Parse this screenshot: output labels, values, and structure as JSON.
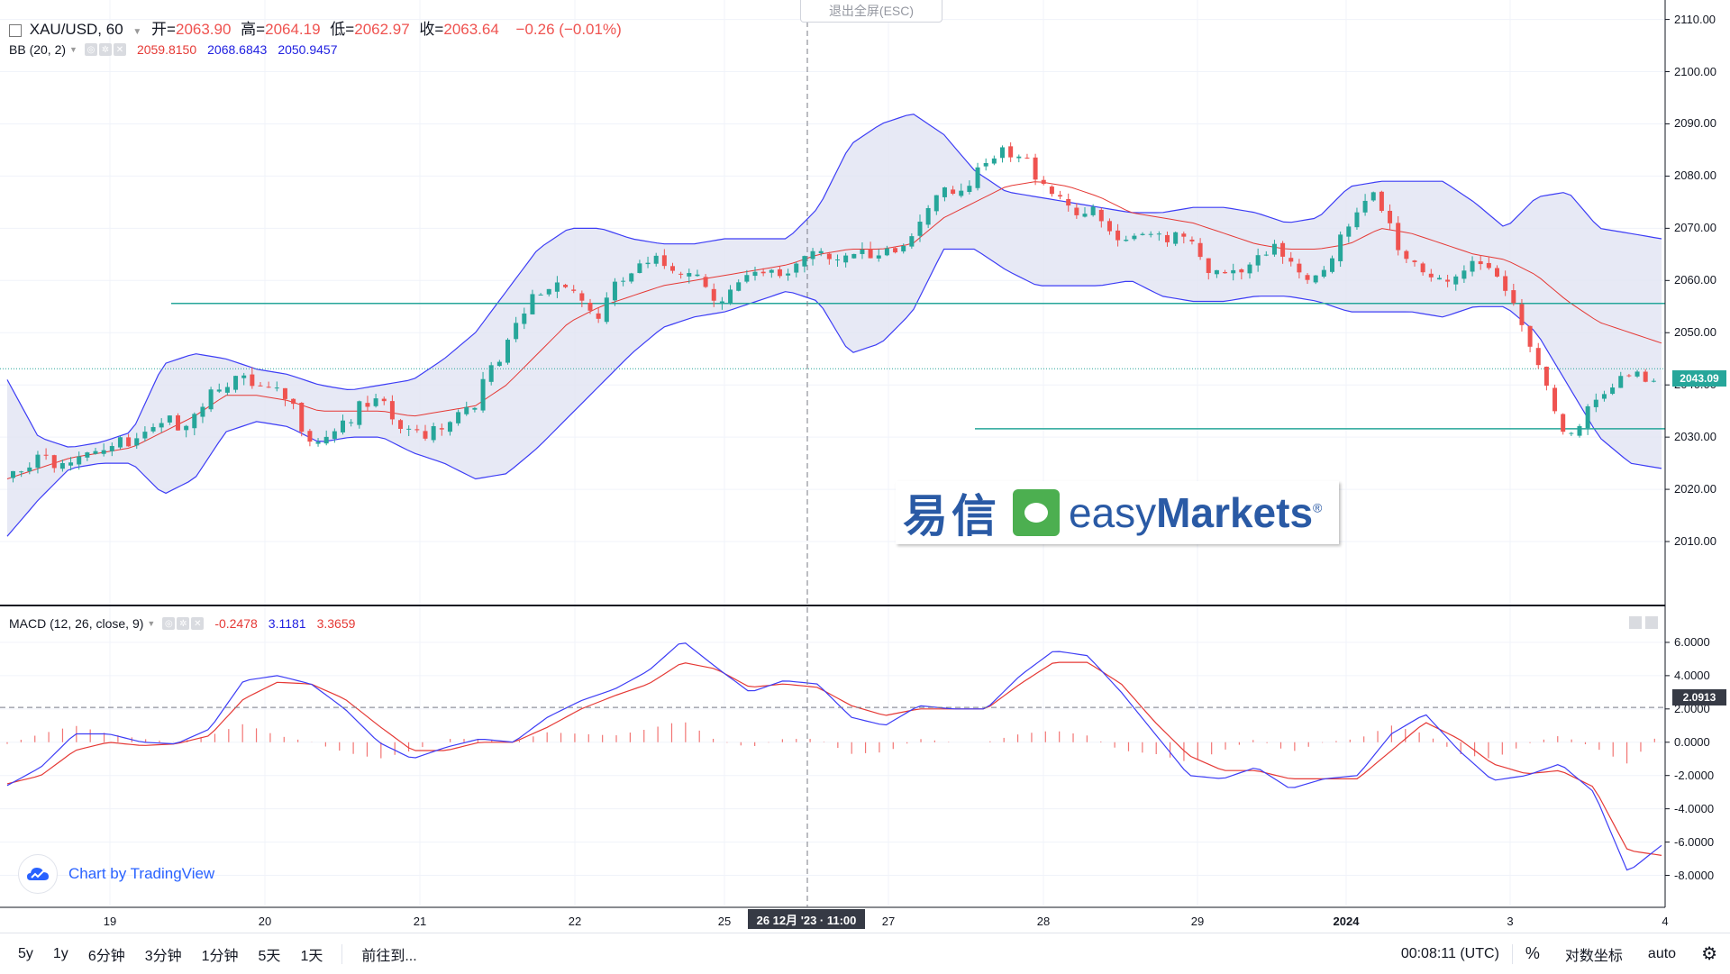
{
  "header": {
    "symbol": "XAU/USD, 60",
    "open_label": "开=",
    "open_value": "2063.90",
    "high_label": "高=",
    "high_value": "2064.19",
    "low_label": "低=",
    "low_value": "2062.97",
    "close_label": "收=",
    "close_value": "2063.64",
    "change": "−0.26 (−0.01%)"
  },
  "bb": {
    "label": "BB (20, 2)",
    "basis": "2059.8150",
    "upper": "2068.6843",
    "lower": "2050.9457"
  },
  "macd": {
    "label": "MACD (12, 26, close, 9)",
    "hist": "-0.2478",
    "macd": "3.1181",
    "signal": "3.3659"
  },
  "exit_fullscreen": "退出全屏(ESC)",
  "price_axis": [
    "2110.00",
    "2100.00",
    "2090.00",
    "2080.00",
    "2070.00",
    "2060.00",
    "2050.00",
    "2040.00",
    "2030.00",
    "2020.00",
    "2010.00"
  ],
  "current_price_tag": "2043.09",
  "macd_axis": [
    "6.0000",
    "4.0000",
    "2.0000",
    "0.0000",
    "-2.0000",
    "-4.0000",
    "-6.0000",
    "-8.0000"
  ],
  "macd_crosshair_tag": "2.0913",
  "time_axis": [
    "19",
    "20",
    "21",
    "22",
    "25",
    "27",
    "28",
    "29",
    "2024",
    "3",
    "4"
  ],
  "crosshair_time": "26 12月 '23 · 11:00",
  "watermark": {
    "cn": "易信",
    "en_light": "easy",
    "en_bold": "Markets",
    "reg": "®"
  },
  "tradingview": "Chart by TradingView",
  "bottom_toolbar": {
    "ranges": [
      "5y",
      "1y",
      "6分钟",
      "3分钟",
      "1分钟",
      "5天",
      "1天"
    ],
    "goto": "前往到...",
    "clock": "00:08:11 (UTC)",
    "percent": "%",
    "log": "对数坐标",
    "auto": "auto"
  },
  "colors": {
    "up": "#26a69a",
    "down": "#ef5350",
    "band_fill": "#e1e3f2",
    "band_line": "#3d3df5",
    "basis": "#e53935",
    "hline": "#26a69a",
    "macd_line": "#3d3df5",
    "signal_line": "#e53935",
    "price_tag": "#26a69a",
    "crosshair_tag": "#363a45"
  },
  "chart_data": {
    "type": "candlestick",
    "price_scale": {
      "min": 2005,
      "max": 2112
    },
    "horizontal_lines": [
      2055.6,
      2031.6
    ],
    "path_anchors": {
      "price": [
        2022,
        2026,
        2028,
        2030,
        2029,
        2032,
        2036,
        2043,
        2040,
        2038,
        2031,
        2035,
        2037,
        2031,
        2034,
        2038,
        2046,
        2058,
        2062,
        2054,
        2062,
        2064,
        2064,
        2058,
        2061,
        2062,
        2068,
        2066,
        2064,
        2068,
        2080,
        2079,
        2085,
        2083,
        2077,
        2073,
        2067,
        2070,
        2071,
        2061,
        2063,
        2067,
        2062,
        2069,
        2077,
        2066,
        2062,
        2063,
        2061,
        2051,
        2033,
        2036,
        2042,
        2043.1
      ],
      "basis": [
        2022,
        2024,
        2026,
        2027,
        2028,
        2031,
        2034,
        2038,
        2038,
        2037,
        2035,
        2035,
        2035,
        2034,
        2035,
        2036,
        2040,
        2046,
        2052,
        2055,
        2057,
        2059,
        2060,
        2061,
        2062,
        2063,
        2065,
        2066,
        2066,
        2067,
        2072,
        2075,
        2078,
        2079,
        2078,
        2076,
        2073,
        2072,
        2071,
        2069,
        2067,
        2066,
        2066,
        2067,
        2070,
        2069,
        2067,
        2065,
        2064,
        2061,
        2056,
        2052,
        2050,
        2048
      ],
      "upper": [
        2041,
        2030,
        2028,
        2029,
        2031,
        2044,
        2046,
        2045,
        2043,
        2042,
        2040,
        2039,
        2040,
        2041,
        2045,
        2050,
        2058,
        2066,
        2070,
        2070,
        2068,
        2067,
        2067,
        2068,
        2068,
        2068,
        2074,
        2086,
        2090,
        2092,
        2088,
        2081,
        2077,
        2076,
        2075,
        2074,
        2073,
        2073,
        2074,
        2074,
        2073,
        2071,
        2072,
        2078,
        2079,
        2079,
        2079,
        2075,
        2070,
        2076,
        2077,
        2070,
        2069,
        2068
      ],
      "lower": [
        2011,
        2018,
        2024,
        2025,
        2025,
        2019,
        2022,
        2031,
        2033,
        2032,
        2029,
        2030,
        2030,
        2027,
        2025,
        2022,
        2023,
        2028,
        2034,
        2040,
        2046,
        2051,
        2053,
        2054,
        2056,
        2058,
        2056,
        2046,
        2048,
        2054,
        2066,
        2066,
        2062,
        2059,
        2059,
        2059,
        2060,
        2057,
        2056,
        2056,
        2057,
        2057,
        2056,
        2054,
        2054,
        2054,
        2053,
        2055,
        2055,
        2050,
        2040,
        2030,
        2025,
        2024
      ]
    },
    "macd_scale": {
      "min": -9.0,
      "max": 6.7
    },
    "macd_line": [
      -2.6,
      -1.5,
      0.5,
      0.5,
      0,
      -0.1,
      0.8,
      3.7,
      4.0,
      3.5,
      2.0,
      0.0,
      -1.0,
      -0.3,
      0.2,
      0.0,
      1.5,
      2.5,
      3.2,
      4.3,
      6.1,
      4.5,
      3.0,
      3.7,
      3.5,
      1.5,
      1.0,
      2.2,
      2.0,
      2.0,
      4.0,
      5.5,
      5.2,
      3.0,
      0.5,
      -2.0,
      -2.2,
      -1.5,
      -2.8,
      -2.2,
      -2.0,
      0.5,
      1.7,
      -0.5,
      -2.3,
      -2.0,
      -1.3,
      -3.0,
      -7.8,
      -6.2
    ],
    "signal_line": [
      -2.5,
      -2.0,
      -0.5,
      0,
      -0.2,
      -0.1,
      0.4,
      2.6,
      3.6,
      3.5,
      2.6,
      1.0,
      -0.5,
      -0.5,
      0,
      0,
      0.9,
      2.0,
      2.8,
      3.5,
      4.8,
      4.4,
      3.3,
      3.5,
      3.3,
      2.2,
      1.6,
      2.0,
      2.0,
      2.0,
      3.5,
      4.8,
      4.8,
      3.5,
      1.2,
      -0.8,
      -1.7,
      -1.7,
      -2.2,
      -2.2,
      -2.2,
      -0.5,
      1.2,
      0.2,
      -1.3,
      -1.9,
      -1.7,
      -2.7,
      -6.5,
      -6.8
    ]
  }
}
